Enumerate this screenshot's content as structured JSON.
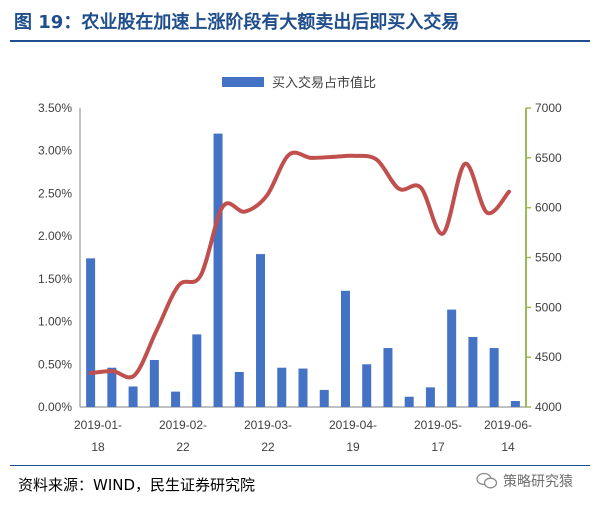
{
  "title": "图 19：农业股在加速上涨阶段有大额卖出后即买入交易",
  "source": "资料来源：WIND，民生证券研究院",
  "watermark": {
    "icon": "wechat-icon",
    "text": "策略研究猿"
  },
  "colors": {
    "title": "#1f4e8c",
    "bar": "#4472c4",
    "line": "#c0504d",
    "right_axis": "#9bbb59"
  },
  "chart_data": {
    "type": "bar",
    "legend": "买入交易占市值比",
    "left_axis": {
      "ticks": [
        "0.00%",
        "0.50%",
        "1.00%",
        "1.50%",
        "2.00%",
        "2.50%",
        "3.00%",
        "3.50%"
      ],
      "ylim": [
        0,
        3.5
      ],
      "unit": "%"
    },
    "right_axis": {
      "ticks": [
        "4000",
        "4500",
        "5000",
        "5500",
        "6000",
        "6500",
        "7000"
      ],
      "ylim": [
        4000,
        7000
      ]
    },
    "x_tick_labels": [
      [
        "2019-01-",
        "18"
      ],
      [
        "2019-02-",
        "22"
      ],
      [
        "2019-03-",
        "22"
      ],
      [
        "2019-04-",
        "19"
      ],
      [
        "2019-05-",
        "17"
      ],
      [
        "2019-06-",
        "14"
      ]
    ],
    "bar_series": {
      "name": "买入交易占市值比",
      "values": [
        1.74,
        0.46,
        0.24,
        0.55,
        0.18,
        0.85,
        3.2,
        0.41,
        1.79,
        0.46,
        0.45,
        0.2,
        1.36,
        0.5,
        0.69,
        0.12,
        0.23,
        1.14,
        0.82,
        0.69,
        0.07
      ]
    },
    "line_series": {
      "values": [
        4340,
        4360,
        4320,
        4770,
        5220,
        5320,
        6010,
        5960,
        6120,
        6530,
        6500,
        6510,
        6520,
        6480,
        6190,
        6200,
        5740,
        6440,
        5950,
        6160
      ]
    }
  }
}
